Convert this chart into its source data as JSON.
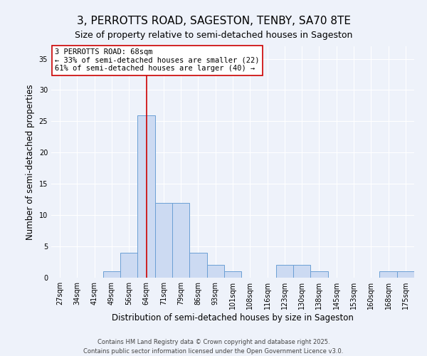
{
  "title": "3, PERROTTS ROAD, SAGESTON, TENBY, SA70 8TE",
  "subtitle": "Size of property relative to semi-detached houses in Sageston",
  "xlabel": "Distribution of semi-detached houses by size in Sageston",
  "ylabel": "Number of semi-detached properties",
  "bins": [
    27,
    34,
    41,
    49,
    56,
    64,
    71,
    79,
    86,
    93,
    101,
    108,
    116,
    123,
    130,
    138,
    145,
    153,
    160,
    168,
    175
  ],
  "counts": [
    0,
    0,
    0,
    1,
    4,
    26,
    12,
    12,
    4,
    2,
    1,
    0,
    0,
    2,
    2,
    1,
    0,
    0,
    0,
    1,
    1
  ],
  "bin_labels": [
    "27sqm",
    "34sqm",
    "41sqm",
    "49sqm",
    "56sqm",
    "64sqm",
    "71sqm",
    "79sqm",
    "86sqm",
    "93sqm",
    "101sqm",
    "108sqm",
    "116sqm",
    "123sqm",
    "130sqm",
    "138sqm",
    "145sqm",
    "153sqm",
    "160sqm",
    "168sqm",
    "175sqm"
  ],
  "bar_color": "#ccdaf2",
  "bar_edge_color": "#6b9fd4",
  "red_line_bin": 5,
  "red_line_color": "#cc0000",
  "annotation_line1": "3 PERROTTS ROAD: 68sqm",
  "annotation_line2": "← 33% of semi-detached houses are smaller (22)",
  "annotation_line3": "61% of semi-detached houses are larger (40) →",
  "annotation_box_color": "#ffffff",
  "annotation_box_edge": "#cc0000",
  "ylim_max": 37,
  "yticks": [
    0,
    5,
    10,
    15,
    20,
    25,
    30,
    35
  ],
  "footer_line1": "Contains HM Land Registry data © Crown copyright and database right 2025.",
  "footer_line2": "Contains public sector information licensed under the Open Government Licence v3.0.",
  "background_color": "#eef2fa",
  "grid_color": "#ffffff",
  "title_fontsize": 11,
  "subtitle_fontsize": 9,
  "axis_label_fontsize": 8.5,
  "tick_fontsize": 7,
  "annotation_fontsize": 7.5,
  "footer_fontsize": 6
}
